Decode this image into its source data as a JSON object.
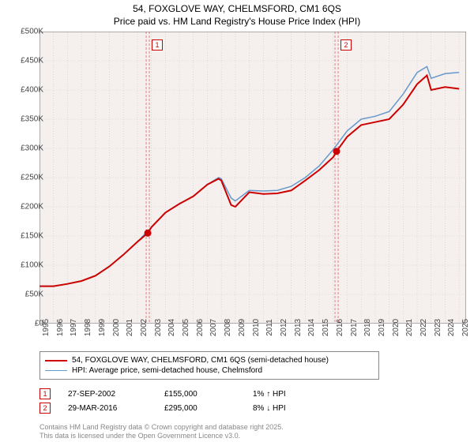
{
  "title_line1": "54, FOXGLOVE WAY, CHELMSFORD, CM1 6QS",
  "title_line2": "Price paid vs. HM Land Registry's House Price Index (HPI)",
  "chart": {
    "type": "line",
    "background_color": "#f5f0ee",
    "grid_color": "#c8c8c8",
    "xlim": [
      1995,
      2025.5
    ],
    "ylim": [
      0,
      500000
    ],
    "ytick_step": 50000,
    "x_ticks": [
      1995,
      1996,
      1997,
      1998,
      1999,
      2000,
      2001,
      2002,
      2003,
      2004,
      2005,
      2006,
      2007,
      2008,
      2009,
      2010,
      2011,
      2012,
      2013,
      2014,
      2015,
      2016,
      2017,
      2018,
      2019,
      2020,
      2021,
      2022,
      2023,
      2024,
      2025
    ],
    "y_ticks": [
      0,
      50000,
      100000,
      150000,
      200000,
      250000,
      300000,
      350000,
      400000,
      450000,
      500000
    ],
    "y_tick_labels": [
      "£0",
      "£50K",
      "£100K",
      "£150K",
      "£200K",
      "£250K",
      "£300K",
      "£350K",
      "£400K",
      "£450K",
      "£500K"
    ],
    "series": [
      {
        "name": "price_paid",
        "color": "#cc0000",
        "line_width": 2,
        "data": [
          [
            1995,
            64000
          ],
          [
            1996,
            64000
          ],
          [
            1997,
            68000
          ],
          [
            1998,
            73000
          ],
          [
            1999,
            82000
          ],
          [
            2000,
            98000
          ],
          [
            2001,
            118000
          ],
          [
            2002,
            140000
          ],
          [
            2002.74,
            155000
          ],
          [
            2003,
            165000
          ],
          [
            2004,
            190000
          ],
          [
            2005,
            205000
          ],
          [
            2006,
            218000
          ],
          [
            2007,
            238000
          ],
          [
            2007.8,
            248000
          ],
          [
            2008,
            245000
          ],
          [
            2008.7,
            203000
          ],
          [
            2009,
            200000
          ],
          [
            2010,
            225000
          ],
          [
            2011,
            222000
          ],
          [
            2012,
            223000
          ],
          [
            2013,
            228000
          ],
          [
            2014,
            245000
          ],
          [
            2015,
            263000
          ],
          [
            2016,
            285000
          ],
          [
            2016.24,
            295000
          ],
          [
            2017,
            320000
          ],
          [
            2018,
            340000
          ],
          [
            2019,
            345000
          ],
          [
            2020,
            350000
          ],
          [
            2021,
            375000
          ],
          [
            2022,
            410000
          ],
          [
            2022.7,
            425000
          ],
          [
            2023,
            400000
          ],
          [
            2024,
            405000
          ],
          [
            2025,
            402000
          ]
        ]
      },
      {
        "name": "hpi",
        "color": "#6699cc",
        "line_width": 1.5,
        "data": [
          [
            1995,
            64000
          ],
          [
            1996,
            64000
          ],
          [
            1997,
            68000
          ],
          [
            1998,
            73000
          ],
          [
            1999,
            82000
          ],
          [
            2000,
            98000
          ],
          [
            2001,
            118000
          ],
          [
            2002,
            140000
          ],
          [
            2003,
            165000
          ],
          [
            2004,
            190000
          ],
          [
            2005,
            205000
          ],
          [
            2006,
            218000
          ],
          [
            2007,
            238000
          ],
          [
            2007.8,
            250000
          ],
          [
            2008,
            248000
          ],
          [
            2008.7,
            215000
          ],
          [
            2009,
            210000
          ],
          [
            2010,
            228000
          ],
          [
            2011,
            227000
          ],
          [
            2012,
            228000
          ],
          [
            2013,
            235000
          ],
          [
            2014,
            250000
          ],
          [
            2015,
            270000
          ],
          [
            2016,
            298000
          ],
          [
            2017,
            330000
          ],
          [
            2018,
            350000
          ],
          [
            2019,
            355000
          ],
          [
            2020,
            363000
          ],
          [
            2021,
            393000
          ],
          [
            2022,
            430000
          ],
          [
            2022.7,
            440000
          ],
          [
            2023,
            420000
          ],
          [
            2024,
            428000
          ],
          [
            2025,
            430000
          ]
        ]
      }
    ],
    "markers": [
      {
        "id": "1",
        "x": 2002.74,
        "y": 155000,
        "color": "#cc0000"
      },
      {
        "id": "2",
        "x": 2016.24,
        "y": 295000,
        "color": "#cc0000"
      }
    ]
  },
  "legend": {
    "items": [
      {
        "color": "#cc0000",
        "width": 2,
        "label": "54, FOXGLOVE WAY, CHELMSFORD, CM1 6QS (semi-detached house)"
      },
      {
        "color": "#6699cc",
        "width": 1.5,
        "label": "HPI: Average price, semi-detached house, Chelmsford"
      }
    ]
  },
  "transactions": [
    {
      "id": "1",
      "date": "27-SEP-2002",
      "price": "£155,000",
      "delta": "1% ↑ HPI"
    },
    {
      "id": "2",
      "date": "29-MAR-2016",
      "price": "£295,000",
      "delta": "8% ↓ HPI"
    }
  ],
  "copyright_line1": "Contains HM Land Registry data © Crown copyright and database right 2025.",
  "copyright_line2": "This data is licensed under the Open Government Licence v3.0."
}
